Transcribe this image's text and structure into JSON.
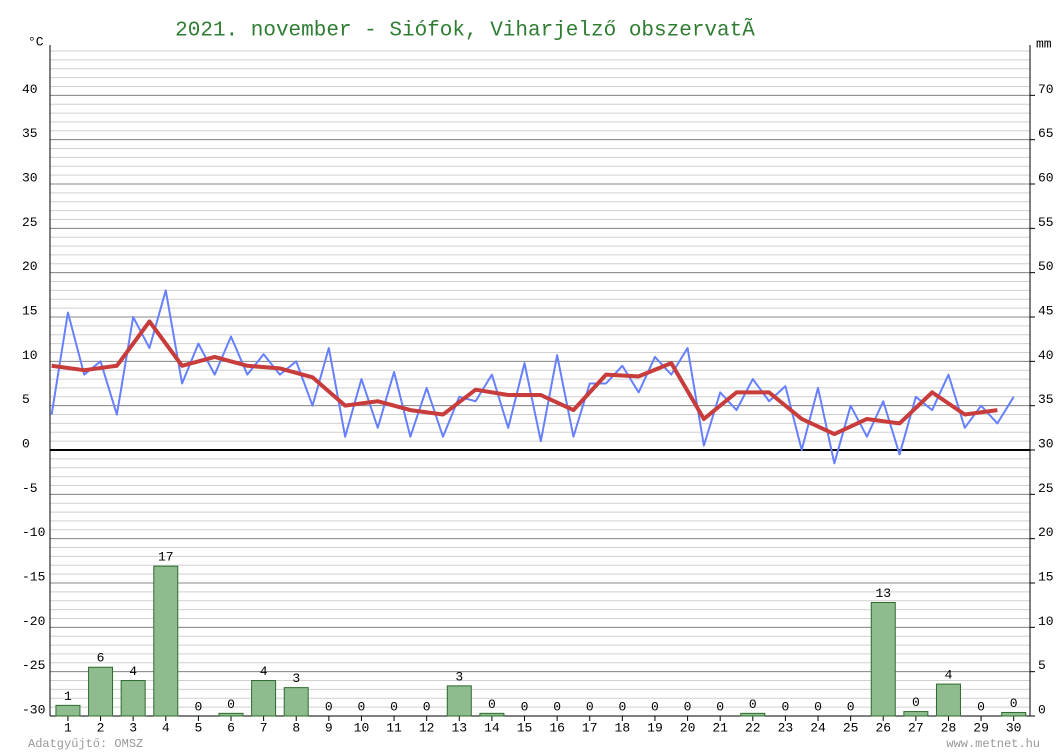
{
  "chart_data": {
    "type": "line",
    "title": "2021. november - Siófok, Viharjelző obszervatÃ",
    "y_label": "°C",
    "y2_label": "mm",
    "footer_left": "Adatgyűjtő: OMSZ",
    "footer_right": "www.metnet.hu",
    "xlim": [
      0.45,
      30.5
    ],
    "xticks": [
      1,
      2,
      3,
      4,
      5,
      6,
      7,
      8,
      9,
      10,
      11,
      12,
      13,
      14,
      15,
      16,
      17,
      18,
      19,
      20,
      21,
      22,
      23,
      24,
      25,
      26,
      27,
      28,
      29,
      30
    ],
    "ylim": [
      -30,
      45
    ],
    "yticks": [
      -30,
      -25,
      -20,
      -15,
      -10,
      -5,
      0,
      5,
      10,
      15,
      20,
      25,
      30,
      35,
      40
    ],
    "y2lim": [
      0,
      75
    ],
    "y2ticks": [
      0,
      5,
      10,
      15,
      20,
      25,
      30,
      35,
      40,
      45,
      50,
      55,
      60,
      65,
      70
    ],
    "grid": true,
    "series": [
      {
        "type": "bar",
        "axis": "y2",
        "color": "#8fbc8f",
        "x": [
          1,
          2,
          3,
          4,
          5,
          6,
          7,
          8,
          9,
          10,
          11,
          12,
          13,
          14,
          15,
          16,
          17,
          18,
          19,
          20,
          21,
          22,
          23,
          24,
          25,
          26,
          27,
          28,
          29,
          30
        ],
        "values": [
          1.2,
          5.5,
          4.0,
          16.9,
          0,
          0.3,
          4.0,
          3.2,
          0,
          0,
          0,
          0,
          3.4,
          0.3,
          0,
          0,
          0,
          0,
          0,
          0,
          0,
          0.3,
          0,
          0,
          0,
          12.8,
          0.5,
          3.6,
          0,
          0.4
        ],
        "value_labels": [
          "1",
          "6",
          "4",
          "17",
          "0",
          "0",
          "4",
          "3",
          "0",
          "0",
          "0",
          "0",
          "3",
          "0",
          "0",
          "0",
          "0",
          "0",
          "0",
          "0",
          "0",
          "0",
          "0",
          "0",
          "0",
          "13",
          "0",
          "4",
          "0",
          "0"
        ]
      },
      {
        "type": "line",
        "color": "#6680ff",
        "x": [
          0.5,
          1,
          1.5,
          2,
          2.5,
          3,
          3.5,
          4,
          4.5,
          5,
          5.5,
          6,
          6.5,
          7,
          7.5,
          8,
          8.5,
          9,
          9.5,
          10,
          10.5,
          11,
          11.5,
          12,
          12.5,
          13,
          13.5,
          14,
          14.5,
          15,
          15.5,
          16,
          16.5,
          17,
          17.5,
          18,
          18.5,
          19,
          19.5,
          20,
          20.5,
          21,
          21.5,
          22,
          22.5,
          23,
          23.5,
          24,
          24.5,
          25,
          25.5,
          26,
          26.5,
          27,
          27.5,
          28,
          28.5,
          29,
          29.5,
          30
        ],
        "values": [
          4,
          15.5,
          8.5,
          10,
          4,
          15,
          11.5,
          18,
          7.5,
          12,
          8.5,
          12.8,
          8.5,
          10.8,
          8.5,
          10,
          5,
          11.5,
          1.5,
          8,
          2.5,
          8.8,
          1.5,
          7,
          1.5,
          6,
          5.5,
          8.5,
          2.5,
          9.8,
          1,
          10.7,
          1.5,
          7.5,
          7.5,
          9.5,
          6.5,
          10.5,
          8.5,
          11.5,
          0.5,
          6.5,
          4.5,
          8,
          5.5,
          7.2,
          0,
          7,
          -1.5,
          5,
          1.5,
          5.5,
          -0.5,
          6,
          4.5,
          8.5,
          2.5,
          5,
          3,
          6
        ]
      },
      {
        "type": "line",
        "color": "#c83c3c",
        "width": 4,
        "x": [
          0.5,
          1.5,
          2.5,
          3.5,
          4.5,
          5.5,
          6.5,
          7.5,
          8.5,
          9.5,
          10.5,
          11.5,
          12.5,
          13.5,
          14.5,
          15.5,
          16.5,
          17.5,
          18.5,
          19.5,
          20.5,
          21.5,
          22.5,
          23.5,
          24.5,
          25.5,
          26.5,
          27.5,
          28.5,
          29.5
        ],
        "values": [
          9.5,
          9,
          9.5,
          14.5,
          9.5,
          10.5,
          9.5,
          9.2,
          8.2,
          5,
          5.5,
          4.5,
          4,
          6.8,
          6.2,
          6.2,
          4.5,
          8.5,
          8.3,
          9.8,
          3.5,
          6.5,
          6.5,
          3.5,
          1.8,
          3.5,
          3,
          6.5,
          4,
          4.5
        ]
      }
    ]
  }
}
